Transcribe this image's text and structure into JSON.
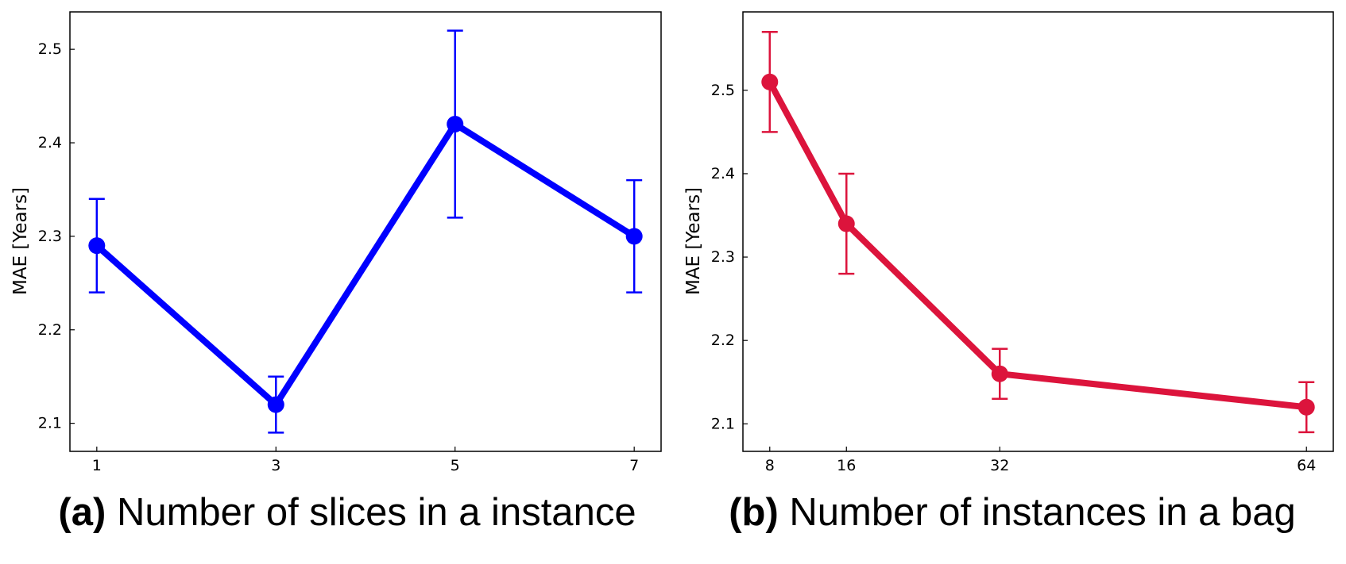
{
  "captions": [
    {
      "label": "(a)",
      "text": "Number of slices in a instance"
    },
    {
      "label": "(b)",
      "text": "Number of instances in a bag"
    }
  ],
  "chart_data": [
    {
      "type": "line",
      "color": "#0000ff",
      "xlabel": "",
      "ylabel": "MAE  [Years]",
      "x": [
        1,
        3,
        5,
        7
      ],
      "x_ticks": [
        1,
        3,
        5,
        7
      ],
      "xlim": [
        0.7,
        7.3
      ],
      "series": [
        {
          "values": [
            2.29,
            2.12,
            2.42,
            2.3
          ],
          "errors": [
            0.05,
            0.03,
            0.1,
            0.06
          ]
        }
      ],
      "ylim": [
        2.07,
        2.54
      ],
      "y_ticks": [
        2.1,
        2.2,
        2.3,
        2.4,
        2.5
      ],
      "grid": false
    },
    {
      "type": "line",
      "color": "#dc143c",
      "xlabel": "",
      "ylabel": "MAE  [Years]",
      "x": [
        8,
        16,
        32,
        64
      ],
      "x_ticks": [
        8,
        16,
        32,
        64
      ],
      "xlim": [
        5.2,
        66.8
      ],
      "series": [
        {
          "values": [
            2.51,
            2.34,
            2.16,
            2.12
          ],
          "errors": [
            0.06,
            0.06,
            0.03,
            0.03
          ]
        }
      ],
      "ylim": [
        2.067,
        2.594
      ],
      "y_ticks": [
        2.1,
        2.2,
        2.3,
        2.4,
        2.5
      ],
      "grid": false
    }
  ]
}
